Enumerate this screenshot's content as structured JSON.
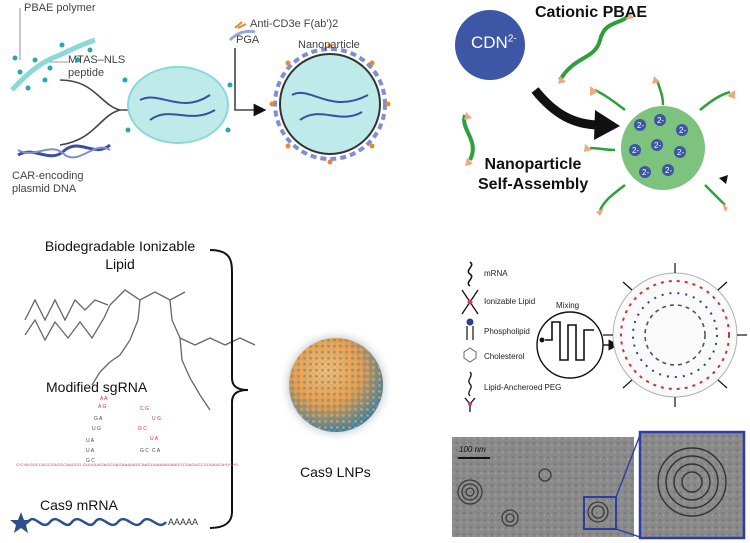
{
  "panel_a": {
    "pbae_polymer": "PBAE polymer",
    "mtas_nls": "MTAS–NLS",
    "peptide": "peptide",
    "car_line1": "CAR-encoding",
    "car_line2": "plasmid DNA",
    "anti_cd3e": "Anti-CD3e F(ab')2",
    "pga": "PGA",
    "nanoparticle": "Nanoparticle",
    "colors": {
      "polymer": "#8ad8d8",
      "dot": "#2aa6b0",
      "dna": "#3b4fa0"
    }
  },
  "panel_b": {
    "cdn": "CDN",
    "cdn_sup": "2-",
    "cationic_pbae": "Cationic PBAE",
    "self_assembly_line1": "Nanoparticle",
    "self_assembly_line2": "Self-Assembly",
    "particle_charge": "2-",
    "colors": {
      "cdn": "#3d56a6",
      "strand": "#2ea03a",
      "cap": "#f0a880",
      "sphere": "#66b766"
    }
  },
  "panel_c": {
    "lipid_line1": "Biodegradable Ionizable",
    "lipid_line2": "Lipid",
    "sgrna": "Modified sgRNA",
    "sgrna_seq": "C*C*A*GUCCAGCGAGGCAAGGG GUUUUAGAGCUAGAAAUAGCAAGUUAAAAUAAGGCUAGUCCGUUAUCA*U*U*U",
    "cas9_mrna": "Cas9 mRNA",
    "poly_a": "AAAAA",
    "lnp": "Cas9 LNPs",
    "colors": {
      "mrna": "#2d4f8e",
      "rna_mod": "#d2334a"
    }
  },
  "panel_d": {
    "legend": [
      "mRNA",
      "Ionizable Lipid",
      "Phospholipid",
      "Cholesterol",
      "Lipid-Ancheroed PEG"
    ],
    "mixing": "Mixing",
    "scale": "100 nm",
    "colors": {
      "ionizable": "#d23b66",
      "phospholipid": "#2d3f8e",
      "zoom_frame": "#2d3da8"
    }
  }
}
